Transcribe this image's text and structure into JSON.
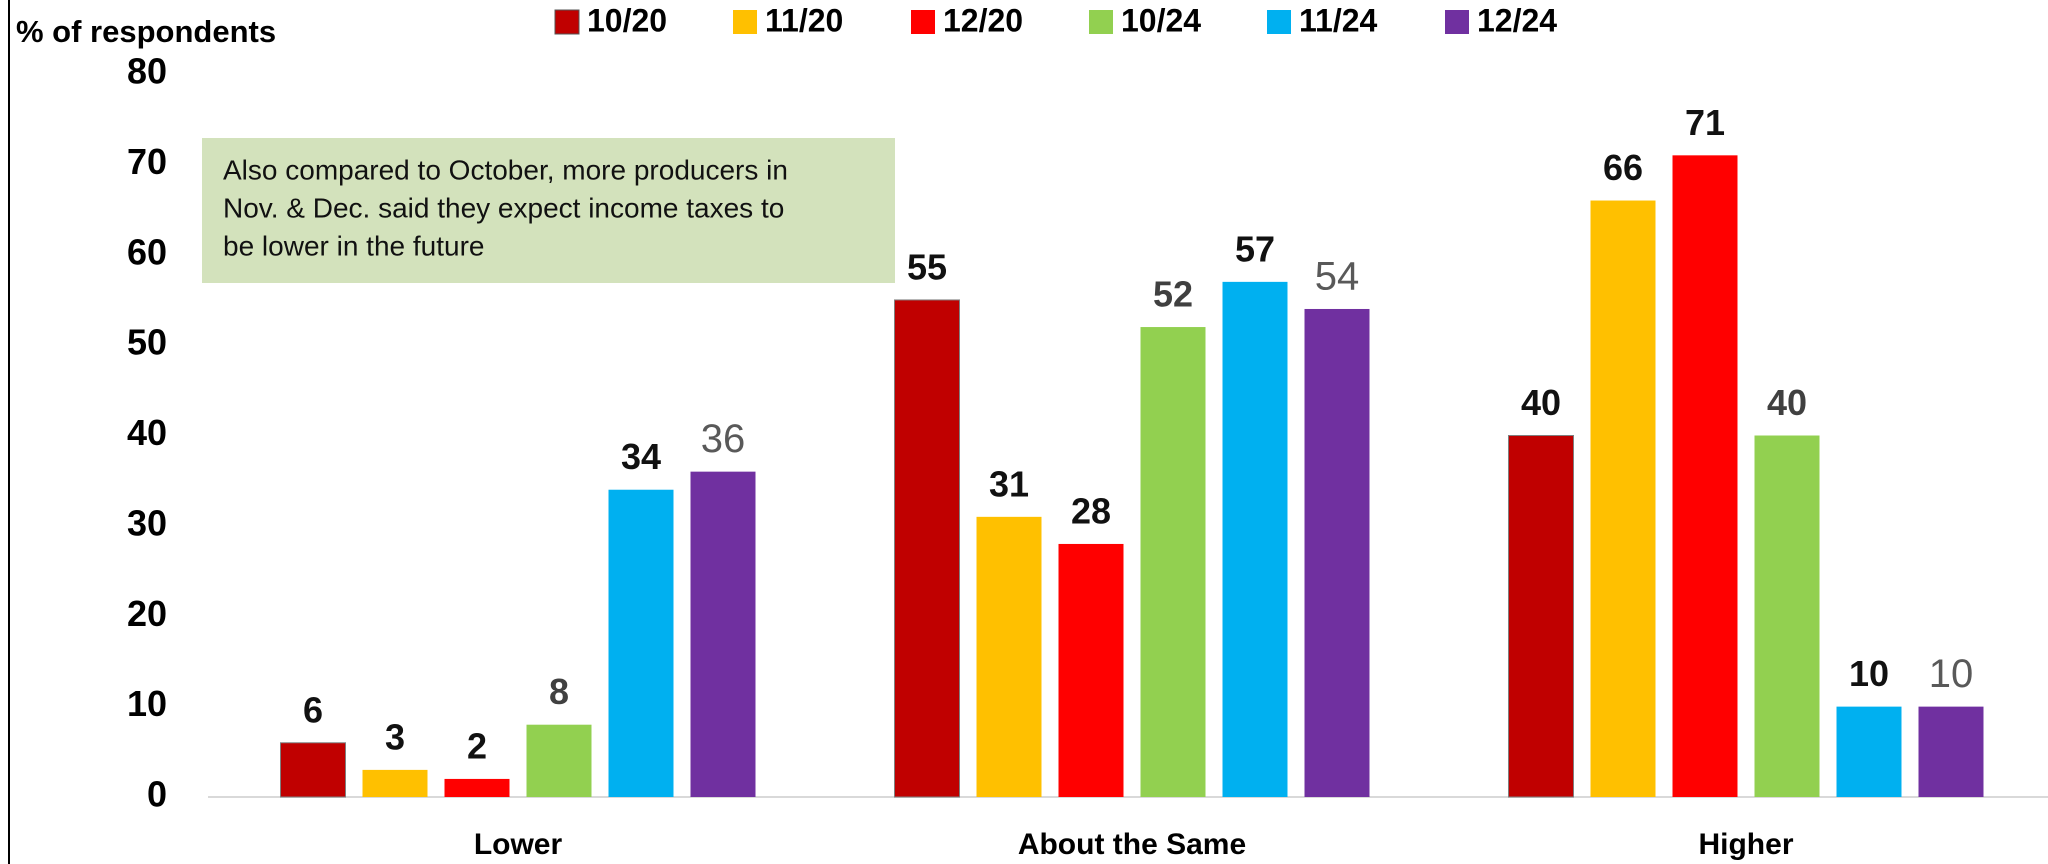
{
  "chart_data": {
    "type": "bar",
    "ylabel": "% of respondents",
    "annotation": [
      "Also compared to October, more producers in",
      "Nov. & Dec. said they expect income taxes to",
      "be lower in the future"
    ],
    "categories": [
      "Lower",
      "About the Same",
      "Higher"
    ],
    "series": [
      {
        "name": "10/20",
        "color": "#C00000",
        "values": [
          6,
          55,
          40
        ]
      },
      {
        "name": "11/20",
        "color": "#FFC000",
        "values": [
          3,
          31,
          66
        ]
      },
      {
        "name": "12/20",
        "color": "#FF0000",
        "values": [
          2,
          28,
          71
        ]
      },
      {
        "name": "10/24",
        "color": "#92D050",
        "values": [
          8,
          52,
          40
        ]
      },
      {
        "name": "11/24",
        "color": "#00B0F0",
        "values": [
          34,
          57,
          10
        ]
      },
      {
        "name": "12/24",
        "color": "#7030A0",
        "values": [
          36,
          54,
          10
        ]
      }
    ],
    "ylim": [
      0,
      80
    ],
    "yticks": [
      0,
      10,
      20,
      30,
      40,
      50,
      60,
      70,
      80
    ],
    "grid": false,
    "legend": "top"
  }
}
